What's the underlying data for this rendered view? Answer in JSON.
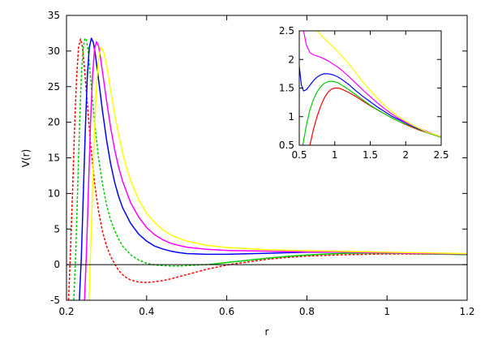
{
  "chart_data": [
    {
      "type": "line",
      "xlabel": "r",
      "ylabel": "V(r)",
      "xlim": [
        0.2,
        1.2
      ],
      "ylim": [
        -5,
        35
      ],
      "xticks": [
        0.2,
        0.4,
        0.6,
        0.8,
        1,
        1.2
      ],
      "yticks": [
        -5,
        0,
        5,
        10,
        15,
        20,
        25,
        30,
        35
      ],
      "xtick_labels": [
        "0.2",
        "0.4",
        "0.6",
        "0.8",
        "1",
        "1.2"
      ],
      "ytick_labels": [
        "-5",
        "0",
        "5",
        "10",
        "15",
        "20",
        "25",
        "30",
        "35"
      ],
      "grid": false,
      "reference_line": {
        "y": 0,
        "color": "#000000"
      },
      "series": [
        {
          "color": "#ff0000",
          "dash": true,
          "x": [
            0.205,
            0.21,
            0.215,
            0.22,
            0.225,
            0.23,
            0.235,
            0.24,
            0.245,
            0.25,
            0.255,
            0.26,
            0.27,
            0.28,
            0.29,
            0.3,
            0.31,
            0.32,
            0.33,
            0.34,
            0.35,
            0.36,
            0.38,
            0.4,
            0.42,
            0.44,
            0.46,
            0.48,
            0.5,
            0.52,
            0.55,
            0.58,
            0.61,
            0.65,
            0.7,
            0.75,
            0.8,
            0.9,
            1.0,
            1.1,
            1.2
          ],
          "y": [
            -5,
            2,
            10,
            19,
            26,
            30.5,
            31.7,
            30.5,
            27.5,
            24,
            20.5,
            17,
            11.5,
            7.5,
            4.6,
            2.6,
            1.2,
            0.1,
            -0.8,
            -1.4,
            -1.85,
            -2.15,
            -2.45,
            -2.5,
            -2.4,
            -2.25,
            -2.0,
            -1.7,
            -1.4,
            -1.1,
            -0.65,
            -0.3,
            0.05,
            0.35,
            0.75,
            1.0,
            1.2,
            1.4,
            1.5,
            1.48,
            1.45
          ]
        },
        {
          "color": "#00cc00",
          "dash": true,
          "x": [
            0.218,
            0.222,
            0.226,
            0.23,
            0.234,
            0.238,
            0.242,
            0.246,
            0.25,
            0.254,
            0.258,
            0.262,
            0.27,
            0.28,
            0.29,
            0.3,
            0.31,
            0.32,
            0.33,
            0.34,
            0.36,
            0.38,
            0.4,
            0.42,
            0.44,
            0.46,
            0.48,
            0.5,
            0.53,
            0.56
          ],
          "y": [
            -5,
            0,
            7,
            15,
            22,
            27.5,
            30.5,
            31.8,
            31.5,
            30,
            27.5,
            25,
            20,
            15,
            11.3,
            8.4,
            6.3,
            4.8,
            3.6,
            2.6,
            1.4,
            0.65,
            0.2,
            -0.05,
            -0.15,
            -0.2,
            -0.2,
            -0.15,
            -0.05,
            0.05
          ]
        },
        {
          "color": "#00cc00",
          "dash": false,
          "x": [
            0.56,
            0.6,
            0.65,
            0.7,
            0.75,
            0.8,
            0.85,
            0.9,
            0.95,
            1.0,
            1.05,
            1.1,
            1.15,
            1.2
          ],
          "y": [
            0.05,
            0.3,
            0.6,
            0.9,
            1.15,
            1.35,
            1.5,
            1.6,
            1.63,
            1.6,
            1.55,
            1.5,
            1.45,
            1.4
          ]
        },
        {
          "color": "#0000ff",
          "dash": false,
          "x": [
            0.232,
            0.237,
            0.242,
            0.247,
            0.252,
            0.257,
            0.262,
            0.267,
            0.272,
            0.28,
            0.29,
            0.3,
            0.31,
            0.32,
            0.33,
            0.34,
            0.36,
            0.38,
            0.4,
            0.42,
            0.44,
            0.46,
            0.48,
            0.5,
            0.55,
            0.6,
            0.7,
            0.8,
            0.9,
            1.0,
            1.1,
            1.2
          ],
          "y": [
            -5,
            1,
            10,
            19,
            26.5,
            30.5,
            31.8,
            31.2,
            29.5,
            26,
            21.5,
            17.5,
            14.2,
            11.6,
            9.6,
            8.0,
            5.8,
            4.3,
            3.3,
            2.6,
            2.2,
            1.9,
            1.7,
            1.55,
            1.45,
            1.45,
            1.6,
            1.75,
            1.75,
            1.7,
            1.6,
            1.5
          ]
        },
        {
          "color": "#ff00ff",
          "dash": false,
          "x": [
            0.245,
            0.25,
            0.255,
            0.26,
            0.265,
            0.27,
            0.275,
            0.28,
            0.285,
            0.29,
            0.3,
            0.31,
            0.32,
            0.33,
            0.34,
            0.36,
            0.38,
            0.4,
            0.42,
            0.44,
            0.46,
            0.48,
            0.5,
            0.55,
            0.6,
            0.7,
            0.8,
            0.9,
            1.0,
            1.1,
            1.2
          ],
          "y": [
            -5,
            2,
            11,
            20,
            26.5,
            30.3,
            31.3,
            30.7,
            29,
            27,
            23,
            19.3,
            16.2,
            13.7,
            11.7,
            8.7,
            6.7,
            5.2,
            4.2,
            3.5,
            3.0,
            2.7,
            2.45,
            2.15,
            2.0,
            1.9,
            1.8,
            1.75,
            1.65,
            1.55,
            1.5
          ]
        },
        {
          "color": "#ffff00",
          "dash": false,
          "x": [
            0.256,
            0.262,
            0.268,
            0.274,
            0.28,
            0.286,
            0.292,
            0.3,
            0.31,
            0.32,
            0.33,
            0.34,
            0.35,
            0.36,
            0.38,
            0.4,
            0.42,
            0.44,
            0.46,
            0.48,
            0.5,
            0.55,
            0.6,
            0.7,
            0.8,
            0.9,
            1.0,
            1.1,
            1.2
          ],
          "y": [
            -5,
            5,
            16,
            24.5,
            29,
            30.5,
            30,
            28,
            24.5,
            21.2,
            18.3,
            15.7,
            13.6,
            11.8,
            9.1,
            7.2,
            5.9,
            4.9,
            4.2,
            3.7,
            3.3,
            2.7,
            2.4,
            2.1,
            1.95,
            1.85,
            1.75,
            1.65,
            1.55
          ]
        }
      ]
    },
    {
      "type": "line",
      "xlabel": "",
      "ylabel": "",
      "xlim": [
        0.5,
        2.5
      ],
      "ylim": [
        0.5,
        2.5
      ],
      "xticks": [
        0.5,
        1,
        1.5,
        2,
        2.5
      ],
      "yticks": [
        0.5,
        1,
        1.5,
        2,
        2.5
      ],
      "xtick_labels": [
        "0.5",
        "1",
        "1.5",
        "2",
        "2.5"
      ],
      "ytick_labels": [
        "0.5",
        "1",
        "1.5",
        "2",
        "2.5"
      ],
      "grid": false,
      "series": [
        {
          "color": "#ff0000",
          "dash": false,
          "x": [
            0.65,
            0.7,
            0.75,
            0.8,
            0.85,
            0.9,
            0.95,
            1.0,
            1.05,
            1.1,
            1.2,
            1.3,
            1.4,
            1.5,
            1.6,
            1.7,
            1.8,
            1.9,
            2.0,
            2.1,
            2.2,
            2.3,
            2.4,
            2.5
          ],
          "y": [
            0.5,
            0.78,
            1.0,
            1.18,
            1.32,
            1.42,
            1.48,
            1.5,
            1.5,
            1.48,
            1.42,
            1.35,
            1.27,
            1.19,
            1.12,
            1.05,
            0.98,
            0.92,
            0.86,
            0.81,
            0.76,
            0.72,
            0.68,
            0.64
          ]
        },
        {
          "color": "#00cc00",
          "dash": false,
          "x": [
            0.55,
            0.6,
            0.65,
            0.7,
            0.75,
            0.8,
            0.85,
            0.9,
            0.95,
            1.0,
            1.05,
            1.1,
            1.2,
            1.3,
            1.4,
            1.5,
            1.6,
            1.7,
            1.8,
            1.9,
            2.0,
            2.1,
            2.2,
            2.3,
            2.4,
            2.5
          ],
          "y": [
            0.5,
            0.85,
            1.12,
            1.3,
            1.43,
            1.52,
            1.58,
            1.61,
            1.62,
            1.61,
            1.59,
            1.55,
            1.47,
            1.38,
            1.29,
            1.2,
            1.12,
            1.05,
            0.98,
            0.92,
            0.87,
            0.82,
            0.77,
            0.72,
            0.68,
            0.64
          ]
        },
        {
          "color": "#0000ff",
          "dash": false,
          "x": [
            0.5,
            0.53,
            0.56,
            0.6,
            0.65,
            0.7,
            0.75,
            0.8,
            0.85,
            0.9,
            0.95,
            1.0,
            1.05,
            1.1,
            1.2,
            1.3,
            1.4,
            1.5,
            1.6,
            1.7,
            1.8,
            1.9,
            2.0,
            2.1,
            2.2,
            2.3,
            2.4,
            2.5
          ],
          "y": [
            1.88,
            1.55,
            1.45,
            1.47,
            1.55,
            1.63,
            1.69,
            1.73,
            1.75,
            1.75,
            1.74,
            1.72,
            1.69,
            1.65,
            1.56,
            1.45,
            1.35,
            1.26,
            1.17,
            1.09,
            1.01,
            0.95,
            0.89,
            0.83,
            0.78,
            0.73,
            0.69,
            0.65
          ]
        },
        {
          "color": "#ff00ff",
          "dash": false,
          "x": [
            0.56,
            0.6,
            0.65,
            0.7,
            0.75,
            0.8,
            0.85,
            0.9,
            0.95,
            1.0,
            1.05,
            1.1,
            1.2,
            1.3,
            1.4,
            1.5,
            1.6,
            1.7,
            1.8,
            1.9,
            2.0,
            2.1,
            2.2,
            2.3,
            2.4,
            2.5
          ],
          "y": [
            2.5,
            2.25,
            2.12,
            2.08,
            2.06,
            2.04,
            2.01,
            1.98,
            1.94,
            1.9,
            1.86,
            1.81,
            1.7,
            1.58,
            1.46,
            1.35,
            1.24,
            1.14,
            1.05,
            0.97,
            0.9,
            0.84,
            0.79,
            0.74,
            0.69,
            0.65
          ]
        },
        {
          "color": "#ffff00",
          "dash": false,
          "x": [
            0.76,
            0.8,
            0.85,
            0.9,
            0.95,
            1.0,
            1.1,
            1.2,
            1.3,
            1.4,
            1.5,
            1.6,
            1.7,
            1.8,
            1.9,
            2.0,
            2.1,
            2.2,
            2.3,
            2.4,
            2.5
          ],
          "y": [
            2.5,
            2.43,
            2.37,
            2.31,
            2.25,
            2.19,
            2.06,
            1.92,
            1.76,
            1.6,
            1.46,
            1.32,
            1.2,
            1.09,
            1.0,
            0.92,
            0.85,
            0.79,
            0.73,
            0.69,
            0.65
          ]
        }
      ]
    }
  ]
}
